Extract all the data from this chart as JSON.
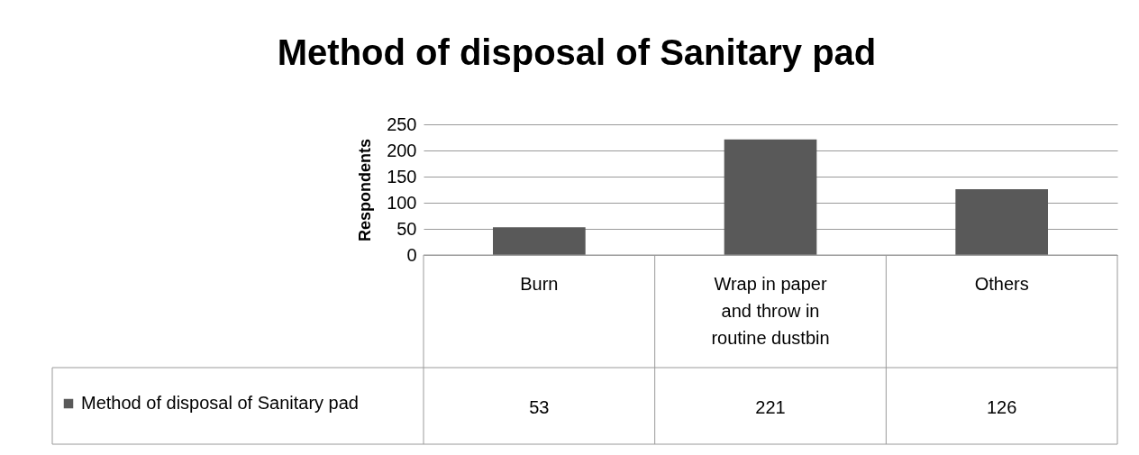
{
  "chart_data": {
    "type": "bar",
    "title": "Method of disposal of Sanitary pad",
    "ylabel": "Respondents",
    "categories": [
      "Burn",
      "Wrap in paper and throw in routine dustbin",
      "Others"
    ],
    "series": [
      {
        "name": "Method of disposal of Sanitary pad",
        "color": "#595959",
        "values": [
          53,
          221,
          126
        ]
      }
    ],
    "ylim": [
      0,
      250
    ],
    "yticks": [
      0,
      50,
      100,
      150,
      200,
      250
    ],
    "grid": "y",
    "legend": "bottom",
    "data_labels": true
  }
}
